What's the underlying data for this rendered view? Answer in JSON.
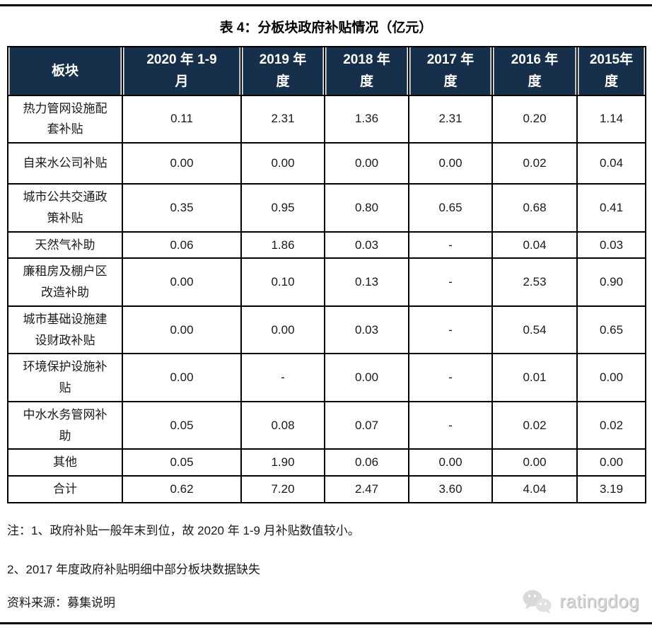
{
  "page": {
    "title": "表 4：分板块政府补贴情况（亿元）"
  },
  "table": {
    "header": {
      "col0": "板块",
      "cols": [
        {
          "id": "2020-1-9",
          "label": "2020 年 1-9 月",
          "line1": "2020 年 1-9",
          "line2": "月"
        },
        {
          "id": "2019",
          "label": "2019 年度",
          "line1": "2019 年",
          "line2": "度"
        },
        {
          "id": "2018",
          "label": "2018 年度",
          "line1": "2018 年",
          "line2": "度"
        },
        {
          "id": "2017",
          "label": "2017 年度",
          "line1": "2017 年",
          "line2": "度"
        },
        {
          "id": "2016",
          "label": "2016 年度",
          "line1": "2016 年",
          "line2": "度"
        },
        {
          "id": "2015",
          "label": "2015年度",
          "line1": "2015年",
          "line2": "度"
        }
      ]
    },
    "rows": [
      {
        "label": "热力管网设施配套补贴",
        "values": [
          "0.11",
          "2.31",
          "1.36",
          "2.31",
          "0.20",
          "1.14"
        ]
      },
      {
        "label": "自来水公司补贴",
        "values": [
          "0.00",
          "0.00",
          "0.00",
          "0.00",
          "0.02",
          "0.04"
        ]
      },
      {
        "label": "城市公共交通政策补贴",
        "values": [
          "0.35",
          "0.95",
          "0.80",
          "0.65",
          "0.68",
          "0.41"
        ]
      },
      {
        "label": "天然气补助",
        "values": [
          "0.06",
          "1.86",
          "0.03",
          "-",
          "0.04",
          "0.03"
        ]
      },
      {
        "label": "廉租房及棚户区改造补助",
        "values": [
          "0.00",
          "0.10",
          "0.13",
          "-",
          "2.53",
          "0.90"
        ]
      },
      {
        "label": "城市基础设施建设财政补贴",
        "values": [
          "0.00",
          "0.00",
          "0.03",
          "-",
          "0.54",
          "0.65"
        ]
      },
      {
        "label": "环境保护设施补贴",
        "values": [
          "0.00",
          "-",
          "0.00",
          "-",
          "0.01",
          "0.00"
        ]
      },
      {
        "label": "中水水务管网补助",
        "values": [
          "0.05",
          "0.08",
          "0.07",
          "-",
          "0.02",
          "0.02"
        ]
      },
      {
        "label": "其他",
        "values": [
          "0.05",
          "1.90",
          "0.06",
          "0.00",
          "0.00",
          "0.00"
        ]
      },
      {
        "label": "合计",
        "values": [
          "0.62",
          "7.20",
          "2.47",
          "3.60",
          "4.04",
          "3.19"
        ]
      }
    ]
  },
  "notes": {
    "note1": "注：1、政府补贴一般年末到位，故 2020 年 1-9 月补贴数值较小。",
    "note2": "2、2017 年度政府补贴明细中部分板块数据缺失",
    "source": "资料来源：募集说明"
  },
  "logo": {
    "text": "ratingdog"
  },
  "colors": {
    "header_bg": "#16304c",
    "header_text": "#ffffff",
    "table_border": "#000000",
    "body_text": "#1a1a1a",
    "logo_gray": "#d6d6d6"
  }
}
